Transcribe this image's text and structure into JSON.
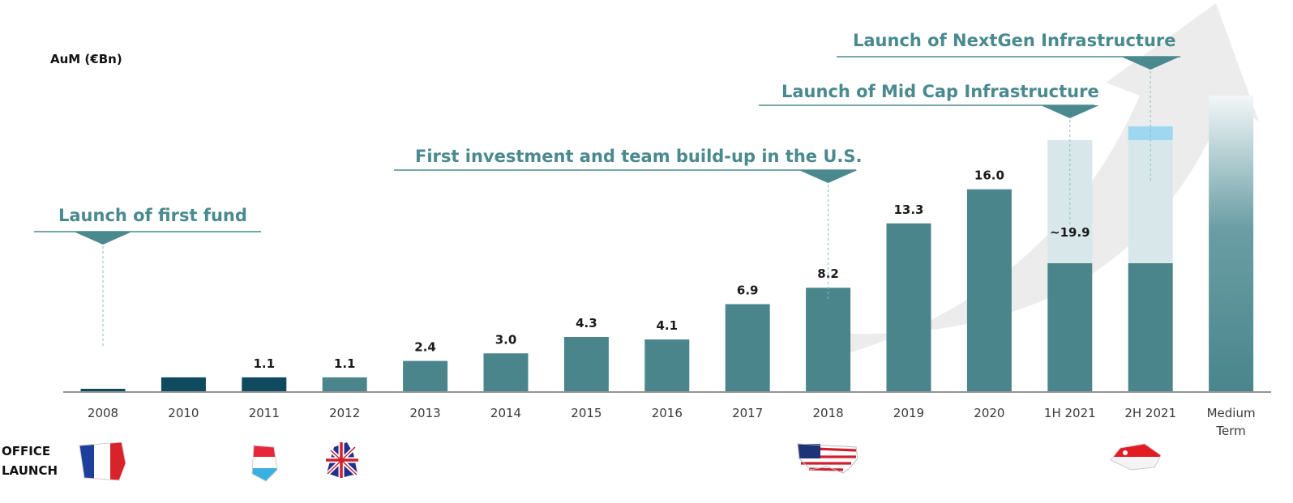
{
  "chart_data": {
    "type": "bar",
    "title": "",
    "xlabel": "",
    "ylabel": "AuM (€Bn)",
    "ylim": [
      0,
      31
    ],
    "categories": [
      "2008",
      "2010",
      "2011",
      "2012",
      "2013",
      "2014",
      "2015",
      "2016",
      "2017",
      "2018",
      "2019",
      "2020",
      "1H 2021",
      "2H 2021",
      "Medium Term"
    ],
    "values": [
      0.1,
      1.1,
      1.1,
      1.1,
      2.4,
      3.0,
      4.3,
      4.1,
      6.9,
      8.2,
      13.3,
      16.0,
      19.9,
      19.9,
      null
    ],
    "value_labels": [
      "",
      "",
      "1.1",
      "1.1",
      "2.4",
      "3.0",
      "4.3",
      "4.1",
      "6.9",
      "8.2",
      "13.3",
      "16.0",
      "~19.9",
      "",
      ""
    ],
    "colors": {
      "dark": "#0f4a5e",
      "teal": "#4a858c",
      "light_overlay": "#d8e8ea",
      "light_blue": "#9ed8f0",
      "milestone_text": "#4a8a8e",
      "arrow": "#ececec"
    },
    "annotations": [
      {
        "text": "Launch of first fund",
        "category": "2008"
      },
      {
        "text": "First investment and team build-up in the U.S.",
        "category": "2018"
      },
      {
        "text": "Launch of Mid Cap Infrastructure",
        "category": "1H 2021"
      },
      {
        "text": "Launch of NextGen Infrastructure",
        "category": "2H 2021"
      }
    ],
    "office_launch": {
      "label_line1": "OFFICE",
      "label_line2": "LAUNCH",
      "flags": [
        {
          "category": "2008",
          "icon": "france-flag-icon"
        },
        {
          "category": "2011",
          "icon": "luxembourg-flag-icon"
        },
        {
          "category": "2012",
          "icon": "uk-flag-icon"
        },
        {
          "category": "2018",
          "icon": "usa-flag-icon"
        },
        {
          "category": "2H 2021",
          "icon": "singapore-flag-icon"
        }
      ]
    }
  }
}
